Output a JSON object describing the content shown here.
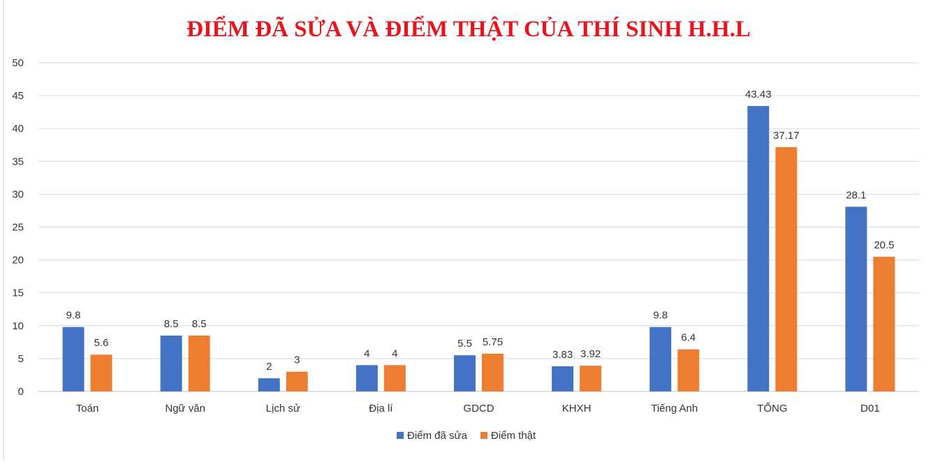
{
  "chart_data": {
    "type": "bar",
    "title": "ĐIỂM ĐÃ SỬA VÀ ĐIỂM THẬT CỦA THÍ SINH H.H.L",
    "xlabel": "",
    "ylabel": "",
    "categories": [
      "Toán",
      "Ngữ văn",
      "Lịch sử",
      "Địa lí",
      "GDCD",
      "KHXH",
      "Tiếng Anh",
      "TỔNG",
      "D01"
    ],
    "series": [
      {
        "name": "Điểm đã sửa",
        "color": "#4472c4",
        "values": [
          9.8,
          8.5,
          2,
          4,
          5.5,
          3.83,
          9.8,
          43.43,
          28.1
        ],
        "labels": [
          "9.8",
          "8.5",
          "2",
          "4",
          "5.5",
          "3.83",
          "9.8",
          "43.43",
          "28.1"
        ]
      },
      {
        "name": "Điểm thật",
        "color": "#ed7d31",
        "values": [
          5.6,
          8.5,
          3,
          4,
          5.75,
          3.92,
          6.4,
          37.17,
          20.5
        ],
        "labels": [
          "5.6",
          "8.5",
          "3",
          "4",
          "5.75",
          "3.92",
          "6.4",
          "37.17",
          "20.5"
        ]
      }
    ],
    "ylim": [
      0,
      50
    ],
    "yticks": [
      "0",
      "5",
      "10",
      "15",
      "20",
      "25",
      "30",
      "35",
      "40",
      "45",
      "50"
    ],
    "grid": true,
    "legend_position": "bottom"
  }
}
